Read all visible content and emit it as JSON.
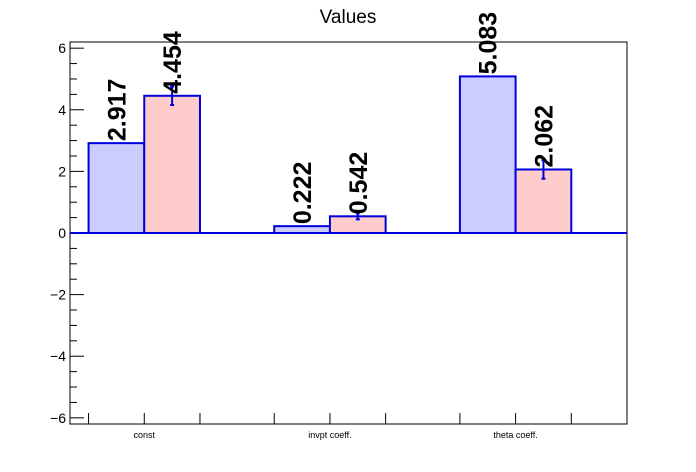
{
  "chart_data": {
    "type": "bar",
    "title": "Values",
    "xlabel": "",
    "ylabel": "",
    "categories": [
      "const",
      "invpt coeff.",
      "theta coeff."
    ],
    "ylim": [
      -6.2,
      6.2
    ],
    "yticks": [
      -6,
      -4,
      -2,
      0,
      2,
      4,
      6
    ],
    "ytick_labels": [
      "−6",
      "−4",
      "−2",
      "0",
      "2",
      "4",
      "6"
    ],
    "series": [
      {
        "values": [
          2.917,
          0.222,
          5.083
        ],
        "labels": [
          "2.917",
          "0.222",
          "5.083"
        ],
        "errors": [
          0,
          0,
          0
        ],
        "fill": "#ccccff",
        "stroke": "#0000dd"
      },
      {
        "values": [
          4.454,
          0.542,
          2.062
        ],
        "labels": [
          "4.454",
          "0.542",
          "2.062"
        ],
        "errors": [
          0.3,
          0.1,
          0.3
        ],
        "fill": "#ffcccc",
        "stroke": "#0000dd"
      }
    ],
    "grid": false,
    "legend": "none"
  }
}
